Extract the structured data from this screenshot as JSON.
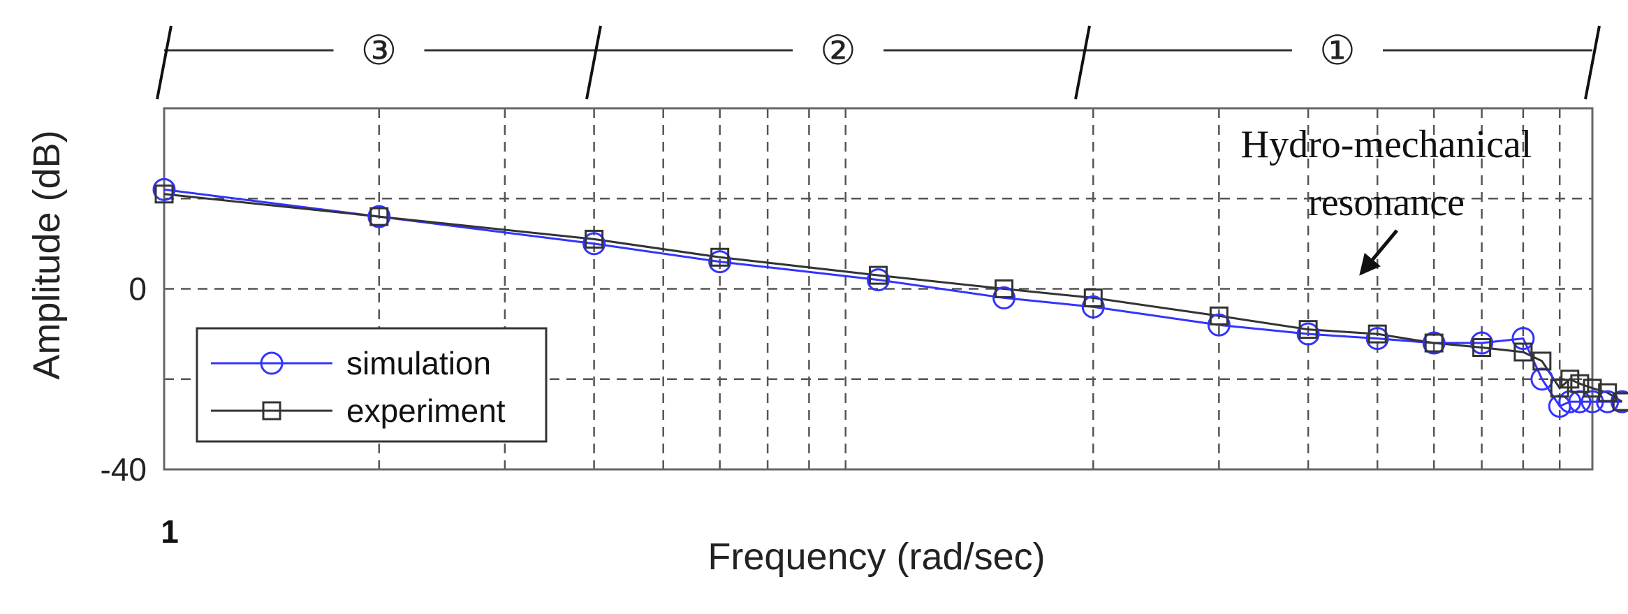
{
  "chart_data": {
    "type": "line",
    "title": "",
    "xlabel": "Frequency (rad/sec)",
    "ylabel": "Amplitude (dB)",
    "x_scale": "log",
    "x_tick_labels": [
      "1"
    ],
    "y_ticks": [
      0,
      -40
    ],
    "y_tick_labels": [
      "0",
      "-40"
    ],
    "ylim": [
      -40,
      40
    ],
    "xlim": [
      1,
      100
    ],
    "grid": true,
    "legend_position": "bottom-left",
    "series": [
      {
        "name": "simulation",
        "color": "#3333ff",
        "marker": "circle",
        "x": [
          1,
          2,
          4,
          6,
          10,
          15,
          20,
          30,
          40,
          50,
          60,
          70,
          80,
          85,
          90,
          93,
          96,
          100,
          105,
          110
        ],
        "y": [
          22,
          16,
          10,
          6,
          2,
          -2,
          -4,
          -8,
          -10,
          -11,
          -12,
          -12,
          -11,
          -20,
          -26,
          -25,
          -25,
          -25,
          -25,
          -25
        ]
      },
      {
        "name": "experiment",
        "color": "#333333",
        "marker": "square",
        "x": [
          1,
          2,
          4,
          6,
          10,
          15,
          20,
          30,
          40,
          50,
          60,
          70,
          80,
          85,
          90,
          93,
          96,
          100,
          105,
          110
        ],
        "y": [
          21,
          16,
          11,
          7,
          3,
          0,
          -2,
          -6,
          -9,
          -10,
          -12,
          -13,
          -14,
          -16,
          -22,
          -20,
          -21,
          -22,
          -23,
          -25
        ]
      }
    ],
    "annotations": [
      {
        "text_line1": "Hydro-mechanical",
        "text_line2": "resonance"
      }
    ],
    "regions": [
      "③",
      "②",
      "①"
    ]
  }
}
